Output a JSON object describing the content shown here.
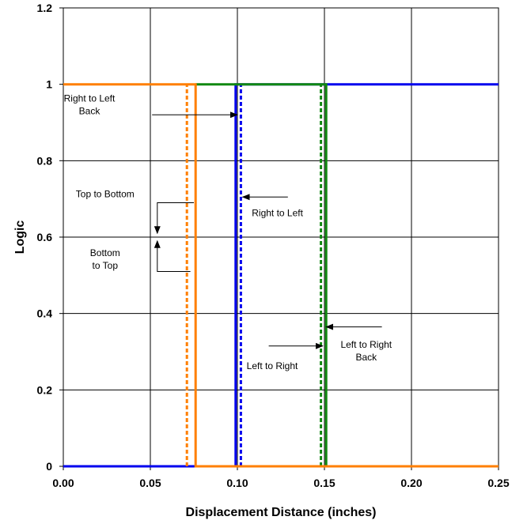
{
  "chart_data": {
    "type": "line",
    "title": "",
    "xlabel": "Displacement Distance (inches)",
    "ylabel": "Logic",
    "xlim": [
      0,
      0.25
    ],
    "ylim": [
      0,
      1.2
    ],
    "x_ticks": [
      "0.00",
      "0.05",
      "0.10",
      "0.15",
      "0.20",
      "0.25"
    ],
    "y_ticks": [
      "0",
      "0.2",
      "0.4",
      "0.6",
      "0.8",
      "1",
      "1.2"
    ],
    "grid": true,
    "legend": "none",
    "colors": {
      "blue": "#0000ee",
      "green": "#118811",
      "orange": "#ff7f00"
    },
    "series": [
      {
        "color": "#0000ee",
        "style": "solid",
        "x": [
          0,
          0.099,
          0.099,
          0.25
        ],
        "y": [
          0,
          0,
          1,
          1
        ]
      },
      {
        "color": "#0000ee",
        "style": "dotted",
        "x": [
          0.102,
          0.102
        ],
        "y": [
          0,
          1
        ]
      },
      {
        "color": "#118811",
        "style": "solid",
        "x": [
          0.076,
          0.151,
          0.151
        ],
        "y": [
          1,
          1,
          0
        ]
      },
      {
        "color": "#118811",
        "style": "dotted",
        "x": [
          0.148,
          0.148
        ],
        "y": [
          0,
          1
        ]
      },
      {
        "color": "#ff7f00",
        "style": "solid",
        "x": [
          0,
          0.076,
          0.076,
          0.25
        ],
        "y": [
          1,
          1,
          0,
          0
        ]
      },
      {
        "color": "#ff7f00",
        "style": "dotted",
        "x": [
          0.071,
          0.071
        ],
        "y": [
          0,
          1
        ]
      }
    ],
    "annotations": [
      {
        "lines": [
          "Right to Left",
          "Back"
        ],
        "text_at": [
          0.015,
          0.955
        ],
        "anchor": "middle",
        "arrow": [
          [
            0.051,
            0.92
          ],
          [
            0.1,
            0.92
          ]
        ]
      },
      {
        "lines": [
          "Top to Bottom"
        ],
        "text_at": [
          0.024,
          0.705
        ],
        "anchor": "middle",
        "arrow": [
          [
            0.075,
            0.69
          ],
          [
            0.054,
            0.69
          ],
          [
            0.054,
            0.61
          ]
        ]
      },
      {
        "lines": [
          "Bottom",
          "to Top"
        ],
        "text_at": [
          0.024,
          0.55
        ],
        "anchor": "middle",
        "arrow": [
          [
            0.073,
            0.51
          ],
          [
            0.054,
            0.51
          ],
          [
            0.054,
            0.59
          ]
        ]
      },
      {
        "lines": [
          "Right to Left"
        ],
        "text_at": [
          0.123,
          0.655
        ],
        "anchor": "middle",
        "arrow": [
          [
            0.129,
            0.705
          ],
          [
            0.103,
            0.705
          ]
        ]
      },
      {
        "lines": [
          "Left to Right",
          "Back"
        ],
        "text_at": [
          0.174,
          0.31
        ],
        "anchor": "middle",
        "arrow": [
          [
            0.183,
            0.365
          ],
          [
            0.151,
            0.365
          ]
        ]
      },
      {
        "lines": [
          "Left to Right"
        ],
        "text_at": [
          0.12,
          0.255
        ],
        "anchor": "middle",
        "arrow": [
          [
            0.118,
            0.315
          ],
          [
            0.149,
            0.315
          ]
        ]
      }
    ]
  }
}
